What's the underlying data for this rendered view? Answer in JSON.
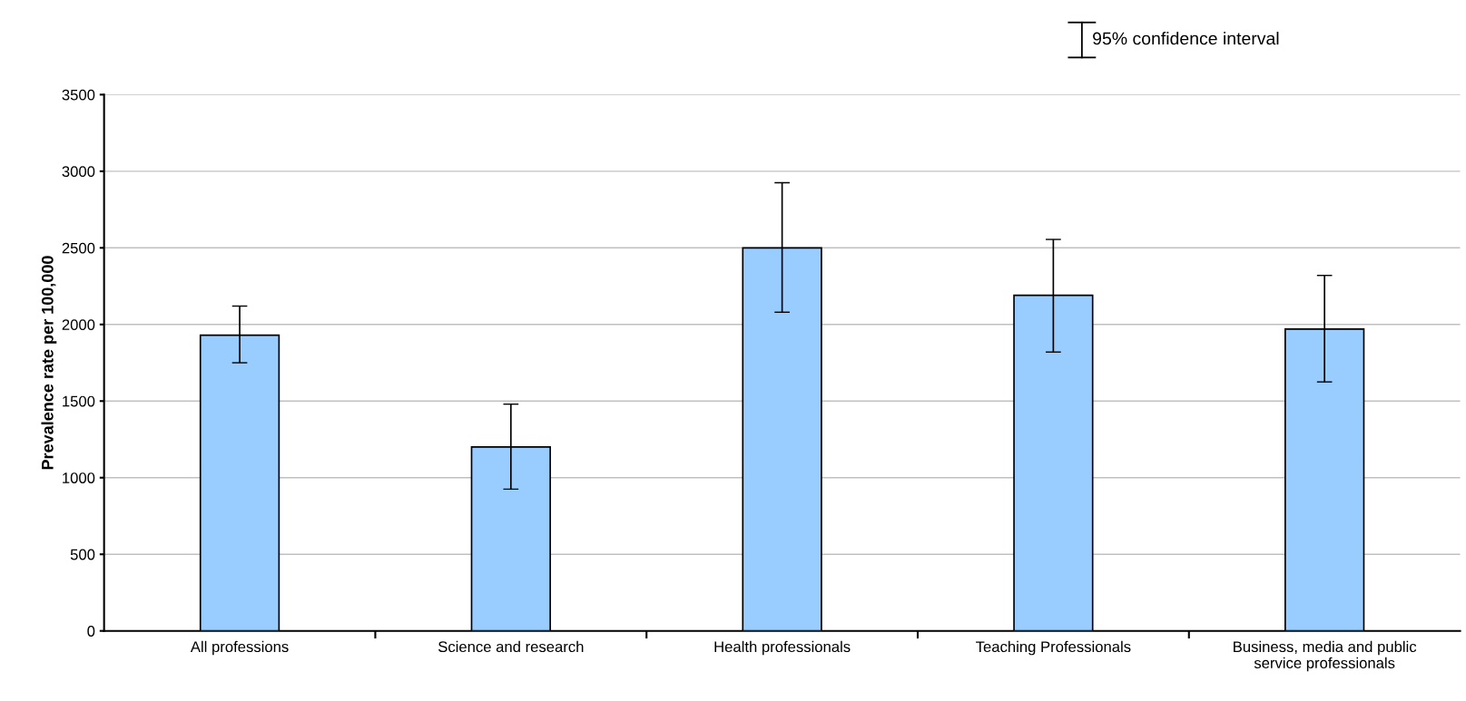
{
  "chart_data": {
    "type": "bar",
    "ylabel": "Prevalence rate per 100,000",
    "categories": [
      "All professions",
      "Science and research",
      "Health professionals",
      "Teaching Professionals",
      "Business, media and public\nservice professionals"
    ],
    "values": [
      1930,
      1200,
      2500,
      2190,
      1970
    ],
    "errors": [
      [
        1750,
        2120
      ],
      [
        925,
        1480
      ],
      [
        2080,
        2925
      ],
      [
        1820,
        2555
      ],
      [
        1625,
        2320
      ]
    ],
    "color": "#99ccff",
    "ylim": [
      0,
      3500
    ],
    "yticks": [
      0,
      500,
      1000,
      1500,
      2000,
      2500,
      3000,
      3500
    ],
    "grid": "y",
    "annotations": [
      "95% confidence interval"
    ]
  }
}
